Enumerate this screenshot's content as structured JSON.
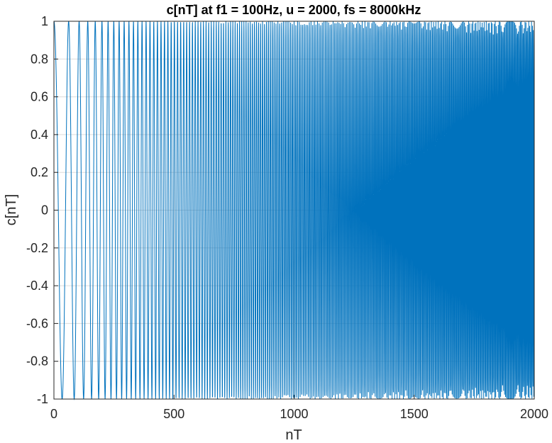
{
  "chart_data": {
    "type": "line",
    "title": "c[nT] at f1 = 100Hz, u = 2000, fs = 8000kHz",
    "xlabel": "nT",
    "ylabel": "c[nT]",
    "xlim": [
      0,
      2000
    ],
    "ylim": [
      -1,
      1
    ],
    "xticks": [
      "0",
      "500",
      "1000",
      "1500",
      "2000"
    ],
    "yticks": [
      "1",
      "0.8",
      "0.6",
      "0.4",
      "0.2",
      "0",
      "-0.2",
      "-0.4",
      "-0.6",
      "-0.8",
      "-1"
    ],
    "grid": true,
    "legend": "none",
    "series": [
      {
        "color": "#0072BD",
        "function": "chirp cosine c(x) = cos(2*pi*(0.0125*x + 0.0000625*x^2))",
        "x_start": 0,
        "x_end": 2000,
        "samples_every": 0.5
      }
    ]
  }
}
